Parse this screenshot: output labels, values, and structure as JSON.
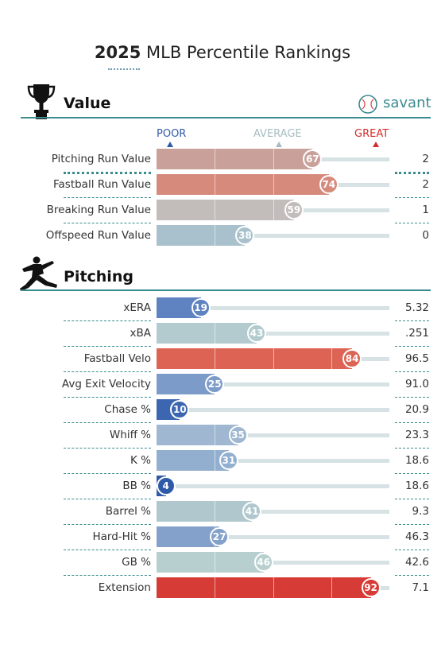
{
  "header": {
    "title_bold": "2025",
    "title_rest": "MLB Percentile Rankings",
    "brand": "savant"
  },
  "scale": {
    "poor": "POOR",
    "average": "AVERAGE",
    "great": "GREAT"
  },
  "colors": {
    "poor": "#2f5aa8",
    "average": "#b4c8cc",
    "great": "#d42a2a",
    "section_rule": "#3b8c8f",
    "track": "#d6e2e4"
  },
  "chart_data": {
    "type": "bar",
    "xlim": [
      0,
      100
    ],
    "sections": [
      {
        "name": "Value",
        "icon": "trophy-icon",
        "metrics": [
          {
            "label": "Pitching Run Value",
            "percentile": 67,
            "value": "2",
            "color": "#c9a19a"
          },
          {
            "label": "Fastball Run Value",
            "percentile": 74,
            "value": "2",
            "color": "#d68a7c"
          },
          {
            "label": "Breaking Run Value",
            "percentile": 59,
            "value": "1",
            "color": "#c2bcba"
          },
          {
            "label": "Offspeed Run Value",
            "percentile": 38,
            "value": "0",
            "color": "#a9c1cd"
          }
        ]
      },
      {
        "name": "Pitching",
        "icon": "pitcher-icon",
        "metrics": [
          {
            "label": "xERA",
            "percentile": 19,
            "value": "5.32",
            "color": "#5f83c0"
          },
          {
            "label": "xBA",
            "percentile": 43,
            "value": ".251",
            "color": "#b3cbcf"
          },
          {
            "label": "Fastball Velo",
            "percentile": 84,
            "value": "96.5",
            "color": "#dd6455"
          },
          {
            "label": "Avg Exit Velocity",
            "percentile": 25,
            "value": "91.0",
            "color": "#7c9bc9"
          },
          {
            "label": "Chase %",
            "percentile": 10,
            "value": "20.9",
            "color": "#3d66b0"
          },
          {
            "label": "Whiff %",
            "percentile": 35,
            "value": "23.3",
            "color": "#9fb7d0"
          },
          {
            "label": "K %",
            "percentile": 31,
            "value": "18.6",
            "color": "#93afd0"
          },
          {
            "label": "BB %",
            "percentile": 4,
            "value": "18.6",
            "color": "#2f5aa8"
          },
          {
            "label": "Barrel %",
            "percentile": 41,
            "value": "9.3",
            "color": "#b0c8cd"
          },
          {
            "label": "Hard-Hit %",
            "percentile": 27,
            "value": "46.3",
            "color": "#84a1cb"
          },
          {
            "label": "GB %",
            "percentile": 46,
            "value": "42.6",
            "color": "#b8cfcf"
          },
          {
            "label": "Extension",
            "percentile": 92,
            "value": "7.1",
            "color": "#d63b35"
          }
        ]
      }
    ]
  }
}
